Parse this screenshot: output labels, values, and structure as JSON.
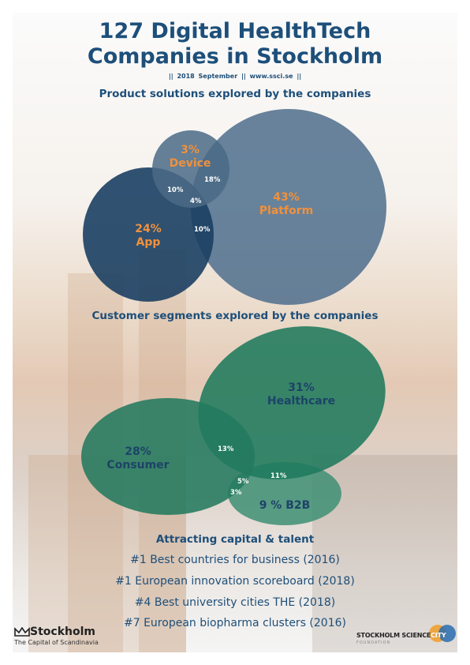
{
  "header": {
    "title_line1": "127 Digital HealthTech",
    "title_line2": "Companies in Stockholm",
    "date": "2018 September",
    "url": "www.ssci.se"
  },
  "product_section": {
    "heading": "Product solutions explored by the companies",
    "device": {
      "pct": "3%",
      "label": "Device"
    },
    "app": {
      "pct": "24%",
      "label": "App"
    },
    "platform": {
      "pct": "43%",
      "label": "Platform"
    },
    "overlap_device_platform": "18%",
    "overlap_device_app": "10%",
    "overlap_all": "4%",
    "overlap_app_platform": "10%"
  },
  "customer_section": {
    "heading": "Customer segments explored by the companies",
    "healthcare": {
      "pct": "31%",
      "label": "Healthcare"
    },
    "consumer": {
      "pct": "28%",
      "label": "Consumer"
    },
    "b2b": {
      "label": "9 % B2B"
    },
    "overlap_consumer_healthcare": "13%",
    "overlap_healthcare_b2b": "11%",
    "overlap_center": "5%",
    "overlap_consumer_b2b": "3%"
  },
  "talent_section": {
    "heading": "Attracting capital & talent",
    "facts": [
      "#1 Best countries for business (2016)",
      "#1 European innovation scoreboard (2018)",
      "#4 Best university cities THE (2018)",
      "#7 European biopharma clusters (2016)"
    ]
  },
  "footer": {
    "stockholm_brand": "Stockholm",
    "stockholm_tagline": "The Capital of Scandinavia",
    "ssc_name_part1": "STOCKHOLM SCIENCE",
    "ssc_name_part2": "CITY",
    "ssc_foundation": "FOUNDATION"
  },
  "colors": {
    "title_blue": "#1d4f7a",
    "orange": "#f0913c",
    "device_circle": "#4a6a86",
    "app_circle": "#1b3f63",
    "platform_circle": "#53728f",
    "healthcare_circle": "#1f7a5c",
    "consumer_circle": "#237a5f",
    "b2b_circle": "#3e8f74"
  }
}
